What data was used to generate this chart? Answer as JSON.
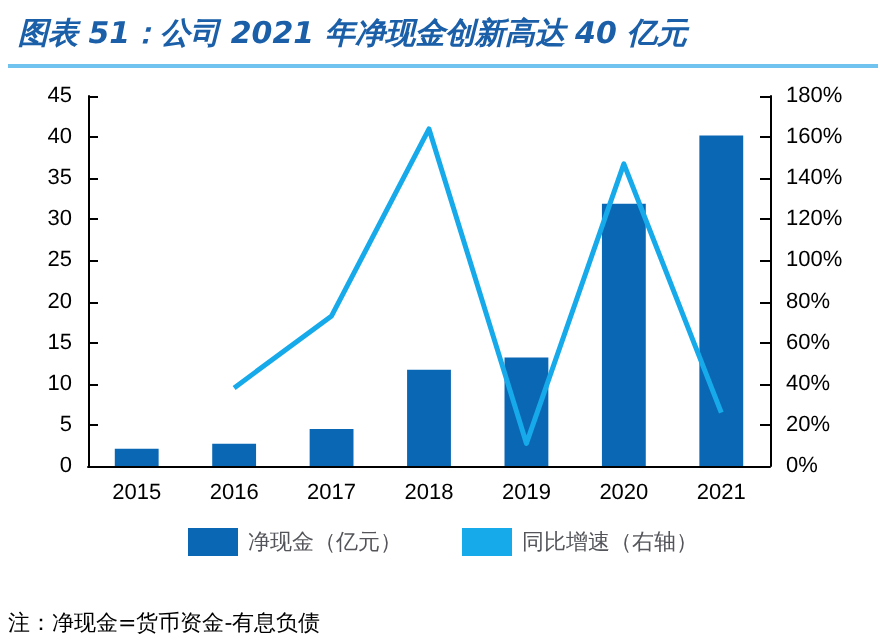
{
  "chart_data": {
    "type": "bar",
    "title": "图表 51：公司 2021 年净现金创新高达 40 亿元",
    "categories": [
      "2015",
      "2016",
      "2017",
      "2018",
      "2019",
      "2020",
      "2021"
    ],
    "series": [
      {
        "name": "净现金（亿元）",
        "color": "#0a67b3",
        "values": [
          2.1,
          2.7,
          4.5,
          11.7,
          13.2,
          31.9,
          40.2
        ]
      },
      {
        "name": "同比增速（右轴）",
        "type": "line",
        "axis": "y2",
        "color": "#16aaeb",
        "values": [
          null,
          38,
          73,
          164,
          11,
          147,
          26
        ]
      }
    ],
    "ylim": [
      0,
      45
    ],
    "yticks": [
      0,
      5,
      10,
      15,
      20,
      25,
      30,
      35,
      40,
      45
    ],
    "y2lim": [
      0,
      180
    ],
    "y2ticks": [
      {
        "value": 0,
        "label": "0%"
      },
      {
        "value": 20,
        "label": "20%"
      },
      {
        "value": 40,
        "label": "40%"
      },
      {
        "value": 60,
        "label": "60%"
      },
      {
        "value": 80,
        "label": "80%"
      },
      {
        "value": 100,
        "label": "100%"
      },
      {
        "value": 120,
        "label": "120%"
      },
      {
        "value": 140,
        "label": "140%"
      },
      {
        "value": 160,
        "label": "160%"
      },
      {
        "value": 180,
        "label": "180%"
      }
    ],
    "grid": false,
    "legend": "bottom",
    "marker": "none",
    "annotations": [
      "注：净现金=货币资金-有息负债"
    ]
  }
}
